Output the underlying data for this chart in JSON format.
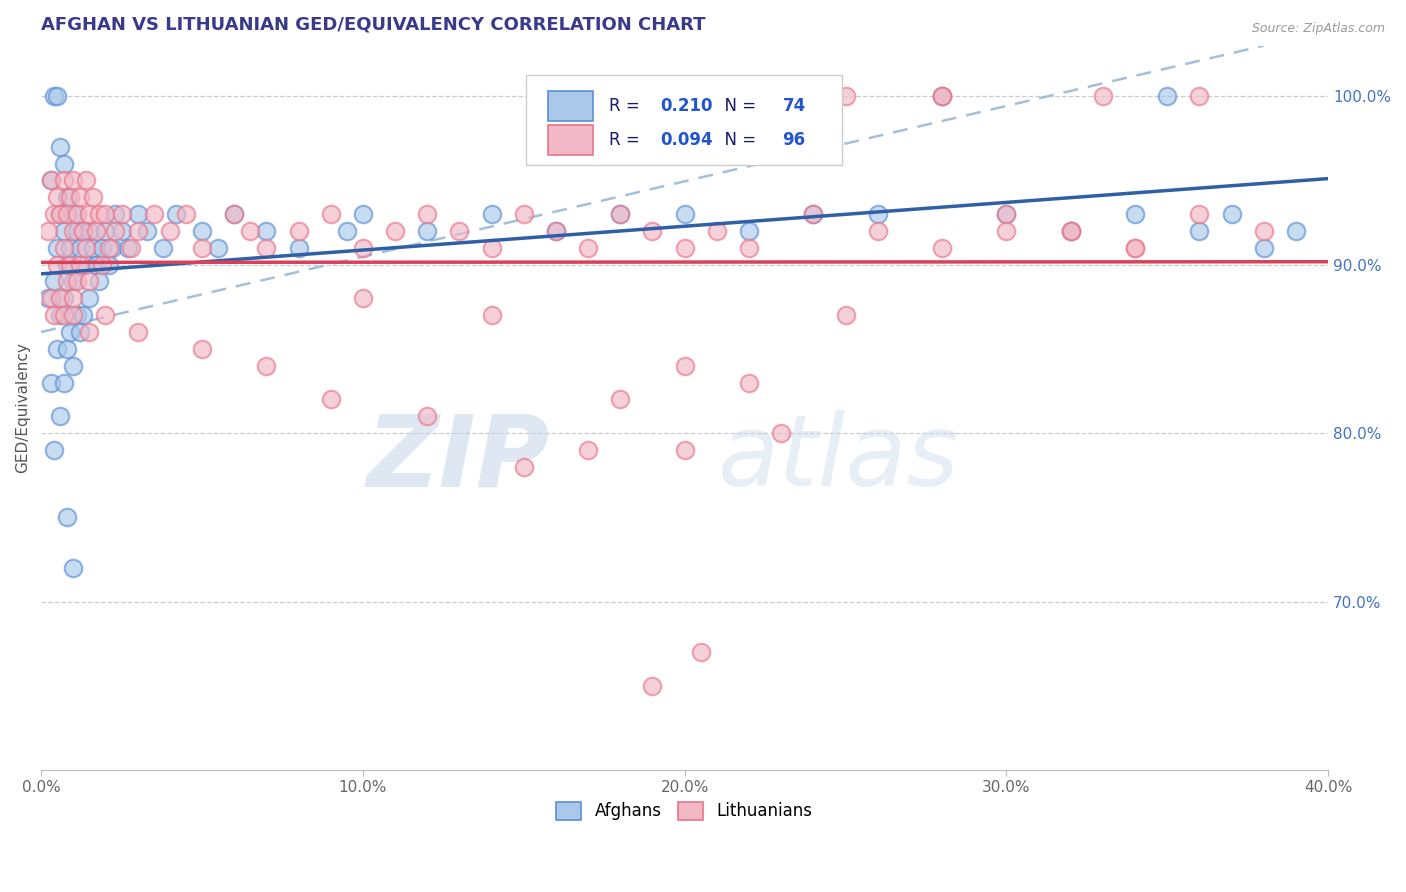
{
  "title": "AFGHAN VS LITHUANIAN GED/EQUIVALENCY CORRELATION CHART",
  "source_text": "Source: ZipAtlas.com",
  "ylabel": "GED/Equivalency",
  "xlim": [
    0.0,
    40.0
  ],
  "ylim": [
    60.0,
    103.0
  ],
  "title_color": "#3a3a8c",
  "title_fontsize": 13,
  "background_color": "#ffffff",
  "watermark_zip": "ZIP",
  "watermark_atlas": "atlas",
  "legend_R_afghan": "0.210",
  "legend_N_afghan": "74",
  "legend_R_lithuanian": "0.094",
  "legend_N_lithuanian": "96",
  "right_ytick_labels": [
    "100.0%",
    "90.0%",
    "80.0%",
    "70.0%"
  ],
  "right_ytick_values": [
    100.0,
    90.0,
    80.0,
    70.0
  ],
  "bottom_xtick_labels": [
    "0.0%",
    "10.0%",
    "20.0%",
    "30.0%",
    "40.0%"
  ],
  "bottom_xtick_values": [
    0.0,
    10.0,
    20.0,
    30.0,
    40.0
  ],
  "afghan_color": "#aac9ea",
  "lithuanian_color": "#f2b8c6",
  "afghan_edge_color": "#5b8fd4",
  "lithuanian_edge_color": "#e8758a",
  "afghan_line_color": "#2f5fa5",
  "lithuanian_line_color": "#d9405a",
  "dashed_line_color": "#9ab8d8",
  "afghan_x": [
    0.2,
    0.3,
    0.3,
    0.4,
    0.4,
    0.5,
    0.5,
    0.6,
    0.6,
    0.6,
    0.7,
    0.7,
    0.7,
    0.8,
    0.8,
    0.8,
    0.9,
    0.9,
    1.0,
    1.0,
    1.0,
    1.1,
    1.1,
    1.2,
    1.2,
    1.3,
    1.3,
    1.4,
    1.5,
    1.5,
    1.6,
    1.7,
    1.8,
    1.9,
    2.0,
    2.1,
    2.2,
    2.3,
    2.5,
    2.7,
    3.0,
    3.3,
    3.8,
    4.2,
    5.0,
    5.5,
    6.0,
    7.0,
    8.0,
    9.5,
    10.0,
    12.0,
    14.0,
    16.0,
    18.0,
    20.0,
    22.0,
    24.0,
    26.0,
    28.0,
    30.0,
    32.0,
    34.0,
    35.0,
    36.0,
    37.0,
    38.0,
    39.0,
    0.4,
    0.5,
    0.6,
    0.7,
    0.8,
    1.0
  ],
  "afghan_y": [
    88.0,
    95.0,
    83.0,
    89.0,
    79.0,
    91.0,
    85.0,
    93.0,
    87.0,
    81.0,
    92.0,
    88.0,
    83.0,
    94.0,
    90.0,
    85.0,
    91.0,
    86.0,
    93.0,
    89.0,
    84.0,
    92.0,
    87.0,
    91.0,
    86.0,
    92.0,
    87.0,
    90.0,
    92.0,
    88.0,
    91.0,
    90.0,
    89.0,
    91.0,
    92.0,
    90.0,
    91.0,
    93.0,
    92.0,
    91.0,
    93.0,
    92.0,
    91.0,
    93.0,
    92.0,
    91.0,
    93.0,
    92.0,
    91.0,
    92.0,
    93.0,
    92.0,
    93.0,
    92.0,
    93.0,
    93.0,
    92.0,
    93.0,
    93.0,
    100.0,
    93.0,
    92.0,
    93.0,
    100.0,
    92.0,
    93.0,
    91.0,
    92.0,
    100.0,
    100.0,
    97.0,
    96.0,
    75.0,
    72.0
  ],
  "lithuanian_x": [
    0.2,
    0.3,
    0.3,
    0.4,
    0.4,
    0.5,
    0.5,
    0.6,
    0.6,
    0.7,
    0.7,
    0.7,
    0.8,
    0.8,
    0.9,
    0.9,
    1.0,
    1.0,
    1.0,
    1.1,
    1.1,
    1.2,
    1.2,
    1.3,
    1.4,
    1.4,
    1.5,
    1.5,
    1.6,
    1.7,
    1.8,
    1.9,
    2.0,
    2.1,
    2.3,
    2.5,
    2.8,
    3.0,
    3.5,
    4.0,
    4.5,
    5.0,
    6.0,
    6.5,
    7.0,
    8.0,
    9.0,
    10.0,
    11.0,
    12.0,
    13.0,
    14.0,
    15.0,
    16.0,
    17.0,
    18.0,
    19.0,
    20.0,
    21.0,
    22.0,
    24.0,
    26.0,
    28.0,
    30.0,
    32.0,
    34.0,
    36.0,
    38.0,
    20.0,
    25.0,
    14.0,
    10.0,
    18.0,
    22.0,
    7.0,
    5.0,
    3.0,
    2.0,
    1.5,
    1.0,
    15.0,
    20.0,
    23.0,
    12.0,
    9.0,
    17.0,
    28.0,
    33.0,
    32.0,
    36.0,
    34.0,
    30.0,
    28.0,
    25.0,
    20.5,
    19.0
  ],
  "lithuanian_y": [
    92.0,
    95.0,
    88.0,
    93.0,
    87.0,
    94.0,
    90.0,
    93.0,
    88.0,
    95.0,
    91.0,
    87.0,
    93.0,
    89.0,
    94.0,
    90.0,
    95.0,
    92.0,
    88.0,
    93.0,
    89.0,
    94.0,
    90.0,
    92.0,
    95.0,
    91.0,
    93.0,
    89.0,
    94.0,
    92.0,
    93.0,
    90.0,
    93.0,
    91.0,
    92.0,
    93.0,
    91.0,
    92.0,
    93.0,
    92.0,
    93.0,
    91.0,
    93.0,
    92.0,
    91.0,
    92.0,
    93.0,
    91.0,
    92.0,
    93.0,
    92.0,
    91.0,
    93.0,
    92.0,
    91.0,
    93.0,
    92.0,
    91.0,
    92.0,
    91.0,
    93.0,
    92.0,
    91.0,
    93.0,
    92.0,
    91.0,
    93.0,
    92.0,
    84.0,
    87.0,
    87.0,
    88.0,
    82.0,
    83.0,
    84.0,
    85.0,
    86.0,
    87.0,
    86.0,
    87.0,
    78.0,
    79.0,
    80.0,
    81.0,
    82.0,
    79.0,
    100.0,
    100.0,
    92.0,
    100.0,
    91.0,
    92.0,
    100.0,
    100.0,
    67.0,
    65.0
  ]
}
